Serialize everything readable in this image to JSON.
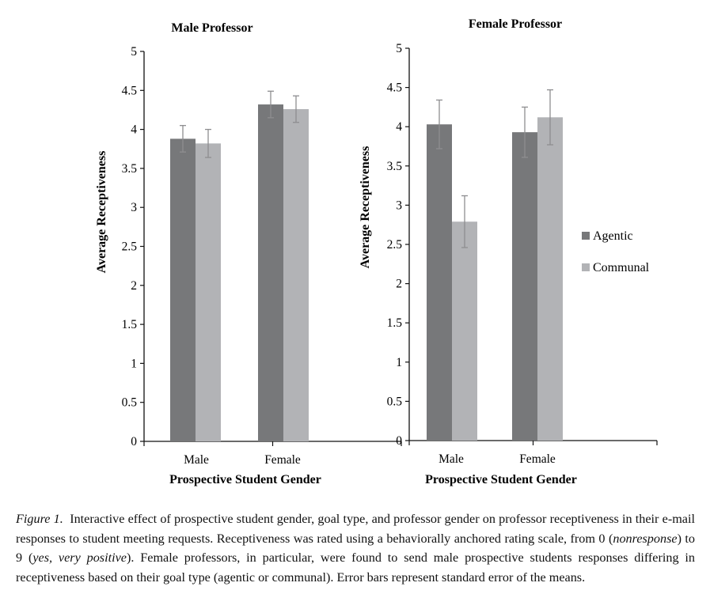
{
  "chart_data": [
    {
      "type": "bar",
      "title": "Male Professor",
      "xlabel": "Prospective Student Gender",
      "ylabel": "Average Receptiveness",
      "ylim": [
        0,
        5
      ],
      "yticks": [
        "0",
        "0.5",
        "1",
        "1.5",
        "2",
        "2.5",
        "3",
        "3.5",
        "4",
        "4.5",
        "5"
      ],
      "categories": [
        "Male",
        "Female"
      ],
      "series": [
        {
          "name": "Agentic",
          "color": "#77787a",
          "values": [
            3.88,
            4.32
          ],
          "errors": [
            0.17,
            0.17
          ]
        },
        {
          "name": "Communal",
          "color": "#b2b3b6",
          "values": [
            3.82,
            4.26
          ],
          "errors": [
            0.18,
            0.17
          ]
        }
      ]
    },
    {
      "type": "bar",
      "title": "Female Professor",
      "xlabel": "Prospective Student Gender",
      "ylabel": "Average Receptiveness",
      "ylim": [
        0,
        5
      ],
      "yticks": [
        "0",
        "0.5",
        "1",
        "1.5",
        "2",
        "2.5",
        "3",
        "3.5",
        "4",
        "4.5",
        "5"
      ],
      "categories": [
        "Male",
        "Female"
      ],
      "series": [
        {
          "name": "Agentic",
          "color": "#77787a",
          "values": [
            4.03,
            3.93
          ],
          "errors": [
            0.31,
            0.32
          ]
        },
        {
          "name": "Communal",
          "color": "#b2b3b6",
          "values": [
            2.79,
            4.12
          ],
          "errors": [
            0.33,
            0.35
          ]
        }
      ],
      "legend": {
        "position": "right",
        "entries": [
          "Agentic",
          "Communal"
        ]
      }
    }
  ],
  "caption": {
    "label": "Figure 1.",
    "part1": "Interactive effect of prospective student gender, goal type, and professor gender on professor receptiveness in their e-mail responses to student meeting requests. Receptiveness was rated using a behaviorally anchored rating scale, from 0 (",
    "italic1": "nonresponse",
    "part2": ") to 9 (",
    "italic2": "yes, very positive",
    "part3": "). Female professors, in particular, were found to send male prospective students responses differing in receptiveness based on their goal type (agentic or communal). Error bars represent standard error of the means."
  }
}
